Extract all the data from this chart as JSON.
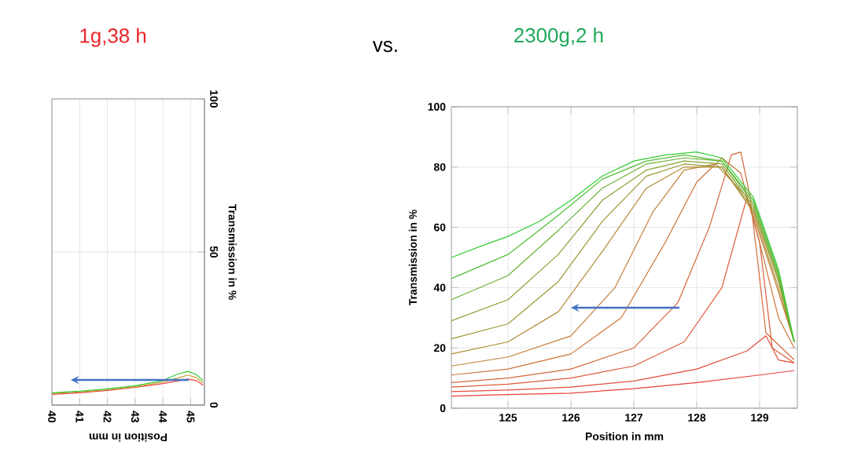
{
  "chart_data": [
    {
      "type": "line",
      "title": "1g,38 h",
      "xlabel": "Position in mm",
      "ylabel": "Transmission in %",
      "xlim": [
        40,
        45.5
      ],
      "ylim": [
        0,
        100
      ],
      "xticks": [
        40,
        41,
        42,
        43,
        44,
        45
      ],
      "yticks": [
        0,
        50,
        100
      ],
      "grid": true,
      "series": [
        {
          "color": "#e8413c",
          "x": [
            40,
            41,
            42,
            43,
            44,
            44.6,
            44.9,
            45.2,
            45.45
          ],
          "values": [
            3.5,
            4,
            4.8,
            5.8,
            7,
            8,
            8.5,
            8,
            6.5
          ]
        },
        {
          "color": "#c9a030",
          "x": [
            40,
            41,
            42,
            43,
            44,
            44.6,
            44.9,
            45.2,
            45.45
          ],
          "values": [
            3.8,
            4.3,
            5,
            6,
            7.5,
            9,
            9.8,
            9,
            7.2
          ]
        },
        {
          "color": "#33cc33",
          "x": [
            40,
            41,
            42,
            43,
            44,
            44.5,
            44.9,
            45.2,
            45.45
          ],
          "values": [
            4,
            4.5,
            5.3,
            6.3,
            8,
            10,
            11,
            10,
            8
          ]
        }
      ]
    },
    {
      "type": "line",
      "title": "2300g,2 h",
      "xlabel": "Position in mm",
      "ylabel": "Transmission in %",
      "xlim": [
        124.1,
        129.6
      ],
      "ylim": [
        0,
        100
      ],
      "xticks": [
        125,
        126,
        127,
        128,
        129
      ],
      "yticks": [
        0,
        20,
        40,
        60,
        80,
        100
      ],
      "grid": true,
      "annotations": [
        "vs."
      ],
      "series": [
        {
          "color": "#e8413c",
          "x": [
            124.1,
            125,
            126,
            127,
            128,
            129,
            129.55
          ],
          "values": [
            4,
            4.5,
            5,
            6.5,
            8.5,
            11,
            12.5
          ]
        },
        {
          "color": "#e34c3b",
          "x": [
            124.1,
            125,
            126,
            127,
            128,
            128.8,
            129.1,
            129.3,
            129.55
          ],
          "values": [
            5.5,
            6,
            7,
            9,
            13,
            19,
            24,
            16,
            15
          ]
        },
        {
          "color": "#dc5a3a",
          "x": [
            124.1,
            125,
            126,
            127,
            127.8,
            128.4,
            128.8,
            129,
            129.2,
            129.55
          ],
          "values": [
            7,
            8,
            10,
            14,
            22,
            40,
            70,
            55,
            20,
            15
          ]
        },
        {
          "color": "#d56839",
          "x": [
            124.1,
            125,
            126,
            127,
            127.7,
            128.2,
            128.55,
            128.7,
            128.85,
            129.1,
            129.55
          ],
          "values": [
            8.5,
            10,
            13,
            20,
            35,
            60,
            84,
            85,
            70,
            25,
            16
          ]
        },
        {
          "color": "#cc7438",
          "x": [
            124.1,
            125,
            126,
            126.8,
            127.5,
            128,
            128.4,
            128.7,
            129,
            129.3,
            129.55
          ],
          "values": [
            11,
            13,
            18,
            30,
            55,
            75,
            83,
            78,
            55,
            30,
            20
          ]
        },
        {
          "color": "#c08036",
          "x": [
            124.1,
            125,
            126,
            126.7,
            127.3,
            127.8,
            128.3,
            128.8,
            129.2,
            129.55
          ],
          "values": [
            14,
            17,
            24,
            40,
            65,
            79,
            81,
            70,
            45,
            22
          ]
        },
        {
          "color": "#b08c35",
          "x": [
            124.1,
            125,
            125.8,
            126.5,
            127.2,
            127.8,
            128.4,
            128.9,
            129.3,
            129.55
          ],
          "values": [
            18,
            22,
            32,
            52,
            73,
            80,
            80,
            65,
            40,
            22
          ]
        },
        {
          "color": "#9c9834",
          "x": [
            124.1,
            125,
            125.8,
            126.5,
            127.2,
            127.8,
            128.4,
            128.9,
            129.3,
            129.55
          ],
          "values": [
            23,
            28,
            42,
            62,
            77,
            81,
            80,
            66,
            42,
            22
          ]
        },
        {
          "color": "#84a434",
          "x": [
            124.1,
            125,
            125.8,
            126.5,
            127.2,
            127.8,
            128.4,
            128.9,
            129.3,
            129.55
          ],
          "values": [
            29,
            36,
            51,
            69,
            79,
            82,
            81,
            67,
            43,
            22
          ]
        },
        {
          "color": "#6cb034",
          "x": [
            124.1,
            125,
            125.8,
            126.5,
            127.2,
            127.8,
            128.4,
            128.9,
            129.3,
            129.55
          ],
          "values": [
            36,
            44,
            59,
            73,
            81,
            83,
            82,
            68,
            44,
            22
          ]
        },
        {
          "color": "#50be33",
          "x": [
            124.1,
            125,
            125.8,
            126.5,
            127.2,
            127.8,
            128.4,
            128.9,
            129.3,
            129.55
          ],
          "values": [
            43,
            51,
            64,
            76,
            82,
            84,
            82,
            69,
            45,
            22
          ]
        },
        {
          "color": "#33cc33",
          "x": [
            124.1,
            124.6,
            125,
            125.5,
            126,
            126.5,
            127,
            127.5,
            128,
            128.4,
            128.9,
            129.3,
            129.55
          ],
          "values": [
            50,
            54,
            57,
            62,
            69,
            77,
            82,
            84,
            85,
            83,
            70,
            46,
            22
          ]
        }
      ]
    }
  ]
}
